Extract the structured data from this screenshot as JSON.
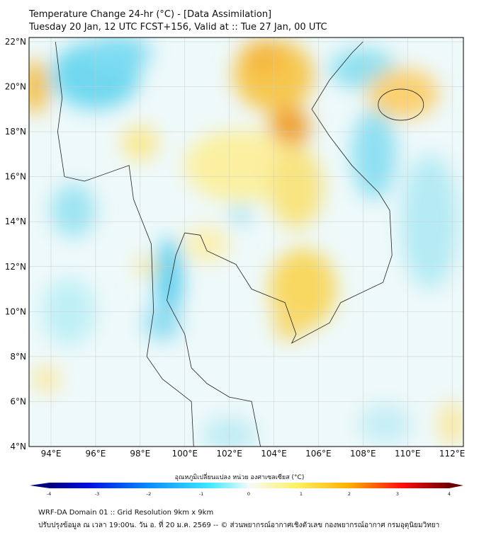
{
  "header": {
    "title": "Temperature Change 24-hr (°C) - [Data Assimilation]",
    "subtitle": "Tuesday 20 Jan, 12 UTC FCST+156, Valid at :: Tue 27 Jan, 00 UTC"
  },
  "map": {
    "lat_labels": [
      "4°N",
      "6°N",
      "8°N",
      "10°N",
      "12°N",
      "14°N",
      "16°N",
      "18°N",
      "20°N",
      "22°N"
    ],
    "lon_labels": [
      "94°E",
      "96°E",
      "98°E",
      "100°E",
      "102°E",
      "104°E",
      "106°E",
      "108°E",
      "110°E",
      "112°E"
    ],
    "lat_range": [
      4,
      22
    ],
    "lon_range": [
      93,
      112.5
    ]
  },
  "colorbar": {
    "title": "อุณหภูมิเปลี่ยนแปลง หน่วย องศาเซลเซียส (°C)",
    "ticks": [
      "-4",
      "-3",
      "-2",
      "-1",
      "0",
      "1",
      "2",
      "3",
      "4"
    ],
    "range": [
      -4,
      4
    ]
  },
  "footer": {
    "line1": "WRF-DA Domain 01 :: Grid Resolution 9km x 9km",
    "line2": "ปรับปรุงข้อมูล ณ เวลา 19:00น. วัน อ. ที่ 20 ม.ค. 2569 -- © ส่วนพยากรณ์อากาศเชิงตัวเลข กองพยากรณ์อากาศ กรมอุตุนิยมวิทยา"
  }
}
